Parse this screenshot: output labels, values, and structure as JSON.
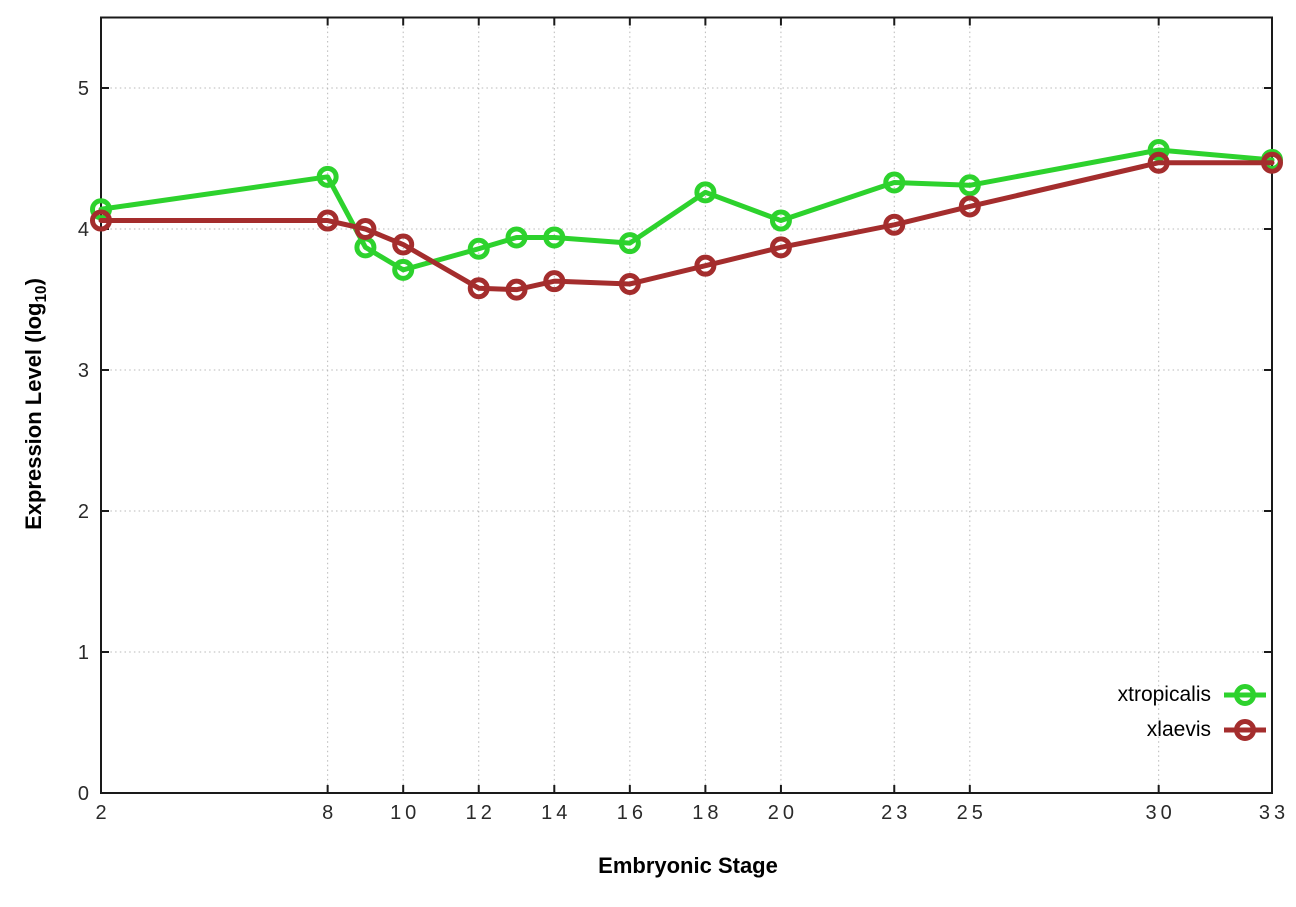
{
  "chart_data": {
    "type": "line",
    "title": "",
    "xlabel": "Embryonic Stage",
    "ylabel_parts": [
      "Expression Level (log",
      "10",
      ")"
    ],
    "x": [
      2,
      8,
      9,
      10,
      12,
      13,
      14,
      16,
      18,
      20,
      23,
      25,
      30,
      33
    ],
    "xticks": [
      2,
      8,
      10,
      12,
      14,
      16,
      18,
      20,
      23,
      25,
      30,
      33
    ],
    "yticks": [
      0,
      1,
      2,
      3,
      4,
      5
    ],
    "xlim": [
      2,
      33
    ],
    "ylim": [
      0,
      5.5
    ],
    "grid": true,
    "marker": "open-circle",
    "line_width": 5,
    "legend_position": "bottom-right",
    "series": [
      {
        "name": "xtropicalis",
        "color": "#2dd22d",
        "values": [
          4.14,
          4.37,
          3.87,
          3.71,
          3.86,
          3.94,
          3.94,
          3.9,
          4.26,
          4.06,
          4.33,
          4.31,
          4.56,
          4.49
        ]
      },
      {
        "name": "xlaevis",
        "color": "#a42d2d",
        "values": [
          4.06,
          4.06,
          4.0,
          3.89,
          3.58,
          3.57,
          3.63,
          3.61,
          3.74,
          3.87,
          4.03,
          4.16,
          4.47,
          4.47
        ]
      }
    ]
  },
  "colors": {
    "background": "#ffffff",
    "grid": "#b8b8b8",
    "border": "#1a1a1a",
    "tick_label": "#2a2a2a",
    "axis_title": "#000000"
  }
}
